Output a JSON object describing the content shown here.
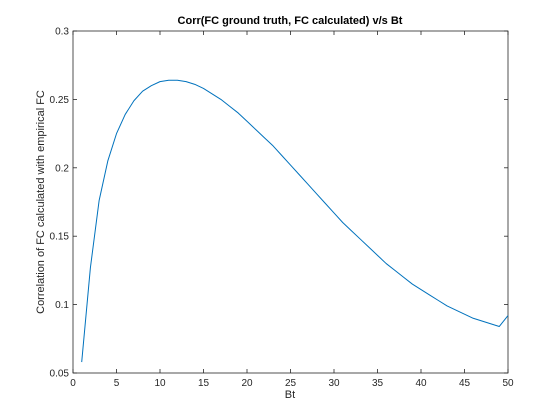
{
  "chart_data": {
    "type": "line",
    "title": "Corr(FC ground truth, FC calculated) v/s Bt",
    "xlabel": "Bt",
    "ylabel": "Correlation of FC calculated with empirical FC",
    "xlim": [
      0,
      50
    ],
    "ylim": [
      0.05,
      0.3
    ],
    "xticks": [
      0,
      5,
      10,
      15,
      20,
      25,
      30,
      35,
      40,
      45,
      50
    ],
    "yticks": [
      0.05,
      0.1,
      0.15,
      0.2,
      0.25,
      0.3
    ],
    "xtick_labels": [
      "0",
      "5",
      "10",
      "15",
      "20",
      "25",
      "30",
      "35",
      "40",
      "45",
      "50"
    ],
    "ytick_labels": [
      "0.05",
      "0.1",
      "0.15",
      "0.2",
      "0.25",
      "0.3"
    ],
    "grid": false,
    "legend": "none",
    "series": [
      {
        "color": "#0072bd",
        "x": [
          1,
          2,
          3,
          4,
          5,
          6,
          7,
          8,
          9,
          10,
          11,
          12,
          13,
          14,
          15,
          16,
          17,
          18,
          19,
          20,
          21,
          22,
          23,
          24,
          25,
          26,
          27,
          28,
          29,
          30,
          31,
          32,
          33,
          34,
          35,
          36,
          37,
          38,
          39,
          40,
          41,
          42,
          43,
          44,
          45,
          46,
          47,
          48,
          49,
          50
        ],
        "y": [
          0.058,
          0.127,
          0.176,
          0.205,
          0.225,
          0.239,
          0.249,
          0.256,
          0.26,
          0.263,
          0.264,
          0.264,
          0.263,
          0.261,
          0.258,
          0.254,
          0.25,
          0.245,
          0.24,
          0.234,
          0.228,
          0.222,
          0.216,
          0.209,
          0.202,
          0.195,
          0.188,
          0.181,
          0.174,
          0.167,
          0.16,
          0.154,
          0.148,
          0.142,
          0.136,
          0.13,
          0.125,
          0.12,
          0.115,
          0.111,
          0.107,
          0.103,
          0.099,
          0.096,
          0.093,
          0.09,
          0.088,
          0.086,
          0.084,
          0.092
        ]
      }
    ]
  }
}
